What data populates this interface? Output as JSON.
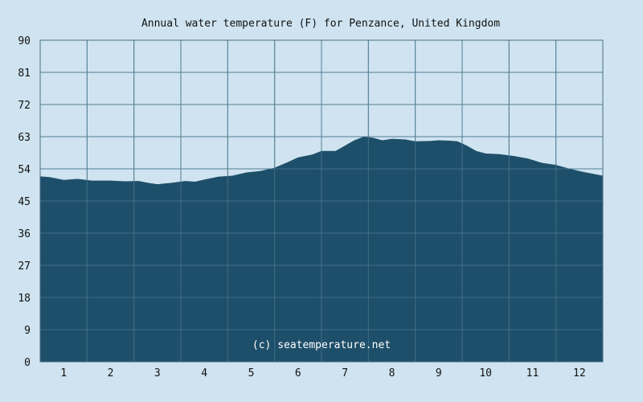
{
  "chart_data": {
    "type": "area",
    "title": "Annual water temperature (F) for Penzance, United Kingdom",
    "xlabel": "",
    "ylabel": "",
    "x_ticks": [
      "1",
      "2",
      "3",
      "4",
      "5",
      "6",
      "7",
      "8",
      "9",
      "10",
      "11",
      "12"
    ],
    "y_ticks": [
      0,
      9,
      18,
      27,
      36,
      45,
      54,
      63,
      72,
      81,
      90
    ],
    "ylim": [
      0,
      90
    ],
    "xlim": [
      0.5,
      12.5
    ],
    "grid": true,
    "credit": "(c) seatemperature.net",
    "colors": {
      "background": "#cfe4f0",
      "plot_background": "#cfe4f0",
      "area": "#1e4f6a",
      "grid": "#4a6f86"
    },
    "series": [
      {
        "x": [
          0.5,
          0.7,
          1.0,
          1.3,
          1.6,
          2.0,
          2.3,
          2.6,
          2.8,
          3.0,
          3.3,
          3.6,
          3.8,
          4.0,
          4.3,
          4.6,
          4.9,
          5.2,
          5.5,
          5.8,
          6.0,
          6.3,
          6.5,
          6.8,
          7.0,
          7.2,
          7.4,
          7.6,
          7.8,
          8.0,
          8.3,
          8.5,
          8.8,
          9.0,
          9.2,
          9.4,
          9.6,
          9.8,
          10.0,
          10.3,
          10.6,
          10.9,
          11.2,
          11.5,
          11.8,
          12.1,
          12.5
        ],
        "y": [
          51.9,
          51.7,
          50.9,
          51.2,
          50.7,
          50.7,
          50.5,
          50.6,
          50.1,
          49.7,
          50.1,
          50.6,
          50.4,
          51.0,
          51.8,
          52.1,
          53.0,
          53.4,
          54.3,
          56.0,
          57.2,
          58.0,
          59.0,
          59.0,
          60.5,
          62.0,
          63.0,
          62.7,
          62.0,
          62.4,
          62.2,
          61.7,
          61.8,
          62.0,
          61.9,
          61.7,
          60.5,
          59.0,
          58.3,
          58.1,
          57.6,
          56.9,
          55.7,
          55.1,
          54.0,
          53.1,
          52.1
        ]
      }
    ]
  }
}
